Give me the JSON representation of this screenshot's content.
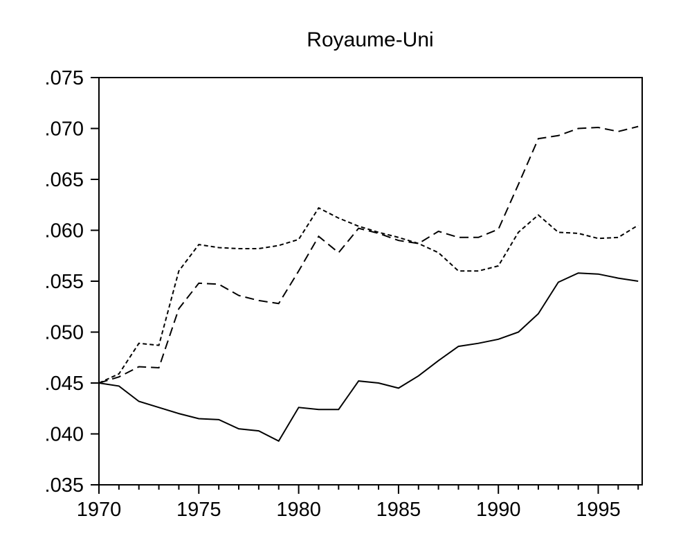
{
  "title": "Royaume-Uni",
  "colors": {
    "line": "#000000",
    "background": "#ffffff",
    "text": "#000000"
  },
  "chart_data": {
    "type": "line",
    "title": "Royaume-Uni",
    "xlabel": "",
    "ylabel": "",
    "grid": false,
    "legend": "none",
    "xlim": [
      1970,
      1997.2
    ],
    "ylim": [
      0.035,
      0.075
    ],
    "x": [
      1970,
      1971,
      1972,
      1973,
      1974,
      1975,
      1976,
      1977,
      1978,
      1979,
      1980,
      1981,
      1982,
      1983,
      1984,
      1985,
      1986,
      1987,
      1988,
      1989,
      1990,
      1991,
      1992,
      1993,
      1994,
      1995,
      1996,
      1997
    ],
    "series": [
      {
        "name": "solid",
        "style": "solid",
        "values": [
          0.045,
          0.0447,
          0.0432,
          0.0426,
          0.042,
          0.0415,
          0.0414,
          0.0405,
          0.0403,
          0.0393,
          0.0426,
          0.0424,
          0.0424,
          0.0452,
          0.045,
          0.0445,
          0.0457,
          0.0472,
          0.0486,
          0.0489,
          0.0493,
          0.05,
          0.0518,
          0.0549,
          0.0558,
          0.0557,
          0.0553,
          0.055
        ]
      },
      {
        "name": "long-dash",
        "style": "long-dash",
        "values": [
          0.045,
          0.0456,
          0.0466,
          0.0465,
          0.0523,
          0.0548,
          0.0547,
          0.0536,
          0.0531,
          0.0528,
          0.056,
          0.0594,
          0.0578,
          0.0602,
          0.0597,
          0.059,
          0.0587,
          0.0599,
          0.0593,
          0.0593,
          0.0601,
          0.0645,
          0.069,
          0.0693,
          0.07,
          0.0701,
          0.0697,
          0.0702
        ]
      },
      {
        "name": "short-dash",
        "style": "short-dash",
        "values": [
          0.045,
          0.0459,
          0.0489,
          0.0487,
          0.056,
          0.0586,
          0.0583,
          0.0582,
          0.0582,
          0.0585,
          0.0591,
          0.0622,
          0.0612,
          0.0604,
          0.0598,
          0.0593,
          0.0587,
          0.0578,
          0.056,
          0.056,
          0.0565,
          0.0598,
          0.0615,
          0.0598,
          0.0597,
          0.0592,
          0.0593,
          0.0605
        ]
      }
    ],
    "yticks": [
      0.035,
      0.04,
      0.045,
      0.05,
      0.055,
      0.06,
      0.065,
      0.07,
      0.075
    ],
    "ytick_labels": [
      ".035",
      ".040",
      ".045",
      ".050",
      ".055",
      ".060",
      ".065",
      ".070",
      ".075"
    ],
    "xticks_major": [
      1970,
      1975,
      1980,
      1985,
      1990,
      1995
    ],
    "xtick_labels": [
      "1970",
      "1975",
      "1980",
      "1985",
      "1990",
      "1995"
    ]
  }
}
